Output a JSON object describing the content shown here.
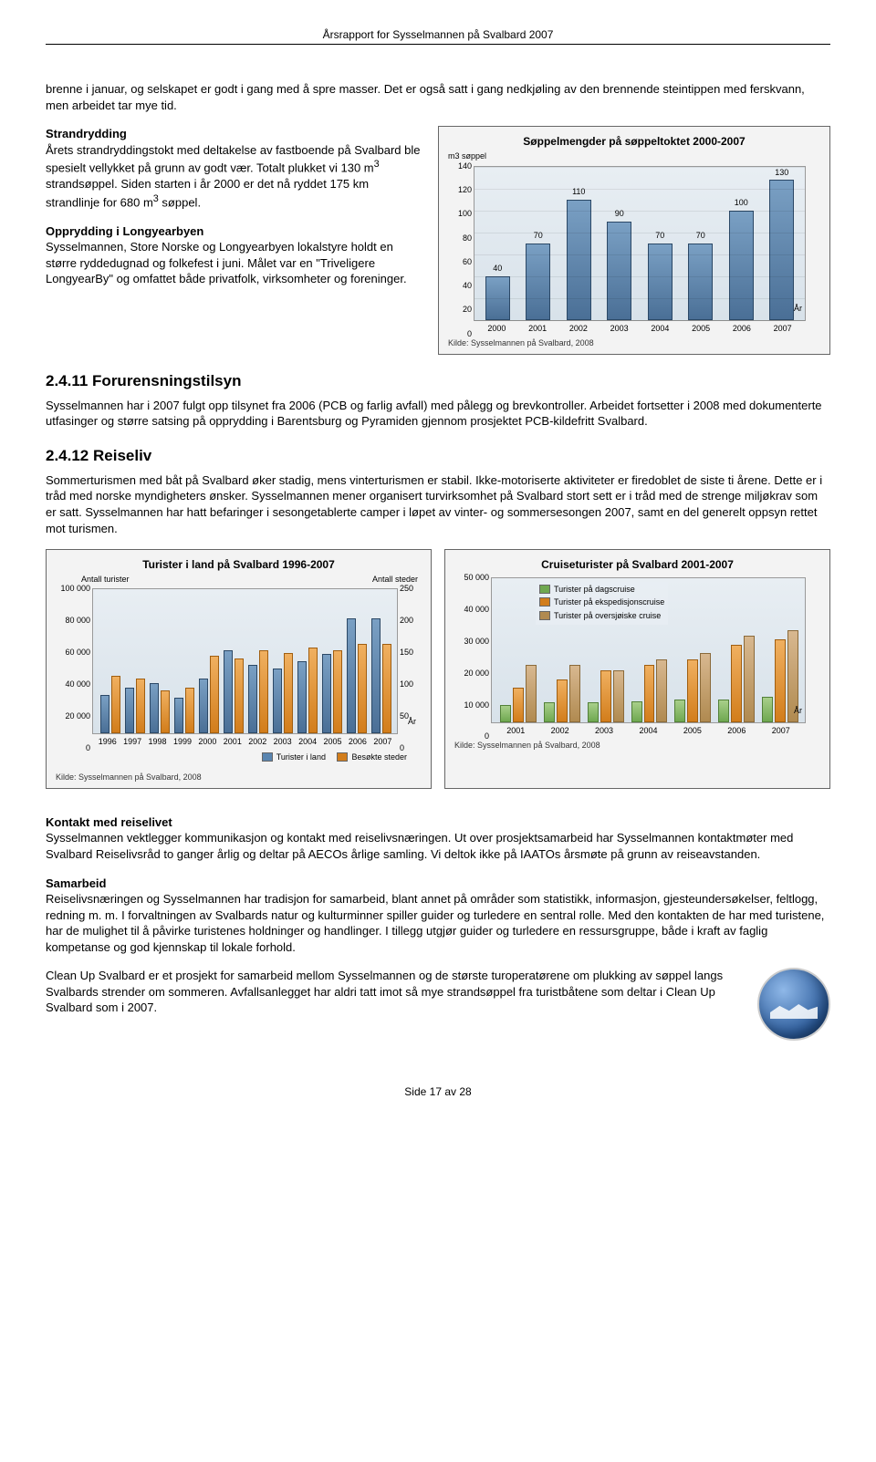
{
  "doc_header": "Årsrapport for Sysselmannen på Svalbard 2007",
  "intro_paragraph": "brenne i januar, og selskapet er godt i gang med å spre masser. Det er også satt i gang nedkjøling av den brennende steintippen med ferskvann, men arbeidet tar mye tid.",
  "strandrydding": {
    "heading": "Strandrydding",
    "body1": "Årets strandryddingstokt med deltakelse av fastboende på Svalbard ble spesielt vellykket på grunn av godt vær. Totalt plukket vi 130 m",
    "body1_sup": "3",
    "body1_cont": " strandsøppel. Siden starten i år 2000 er det nå ryddet 175 km strandlinje for 680 m",
    "body1_sup2": "3",
    "body1_cont2": " søppel."
  },
  "opprydding": {
    "heading": "Opprydding i Longyearbyen",
    "body": "Sysselmannen, Store Norske og Longyearbyen lokalstyre holdt en større ryddedugnad og folkefest i juni. Målet var en \"Triveligere LongyearBy\" og omfattet både privatfolk, virksomheter og foreninger."
  },
  "chart1": {
    "title": "Søppelmengder på søppeltoktet 2000-2007",
    "ylabel": "m3 søppel",
    "source": "Kilde: Sysselmannen på Svalbard, 2008",
    "xaxis_label": "År",
    "ymax": 140,
    "ystep": 20,
    "yticks": [
      "0",
      "20",
      "40",
      "60",
      "80",
      "100",
      "120",
      "140"
    ],
    "categories": [
      "2000",
      "2001",
      "2002",
      "2003",
      "2004",
      "2005",
      "2006",
      "2007"
    ],
    "values": [
      40,
      70,
      110,
      90,
      70,
      70,
      100,
      130
    ],
    "bar_color": "#5a85b0"
  },
  "sec_2411": {
    "heading": "2.4.11 Forurensningstilsyn",
    "body": "Sysselmannen har i 2007 fulgt opp tilsynet fra 2006 (PCB og farlig avfall) med pålegg og brevkontroller. Arbeidet fortsetter i 2008 med dokumenterte utfasinger og større satsing på opprydding i Barentsburg og Pyramiden gjennom prosjektet PCB-kildefritt Svalbard."
  },
  "sec_2412": {
    "heading": "2.4.12 Reiseliv",
    "body": "Sommerturismen med båt på Svalbard øker stadig, mens vinterturismen er stabil. Ikke-motoriserte aktiviteter er firedoblet de siste ti årene. Dette er i tråd med norske myndigheters ønsker. Sysselmannen mener organisert turvirksomhet på Svalbard stort sett er i tråd med de strenge miljøkrav som er satt. Sysselmannen har hatt befaringer i sesongetablerte camper i løpet av vinter- og sommersesongen 2007, samt en del generelt oppsyn rettet mot turismen."
  },
  "chart2": {
    "title": "Turister i land på Svalbard 1996-2007",
    "y1label": "Antall turister",
    "y2label": "Antall steder",
    "source": "Kilde: Sysselmannen på Svalbard, 2008",
    "xaxis_label": "År",
    "y1max": 100000,
    "y1step": 20000,
    "y1ticks": [
      "0",
      "20 000",
      "40 000",
      "60 000",
      "80 000",
      "100 000"
    ],
    "y2max": 250,
    "y2step": 50,
    "y2ticks": [
      "0",
      "50",
      "100",
      "150",
      "200",
      "250"
    ],
    "categories": [
      "1996",
      "1997",
      "1998",
      "1999",
      "2000",
      "2001",
      "2002",
      "2003",
      "2004",
      "2005",
      "2006",
      "2007"
    ],
    "turister": [
      27000,
      32000,
      35000,
      25000,
      38000,
      58000,
      48000,
      45000,
      50000,
      55000,
      80000,
      80000
    ],
    "steder": [
      100,
      95,
      75,
      80,
      135,
      130,
      145,
      140,
      150,
      145,
      155,
      155
    ],
    "legend": {
      "a": "Turister i land",
      "b": "Besøkte steder"
    }
  },
  "chart3": {
    "title": "Cruiseturister på Svalbard 2001-2007",
    "source": "Kilde: Sysselmannen på Svalbard, 2008",
    "xaxis_label": "År",
    "ymax": 50000,
    "ystep": 10000,
    "yticks": [
      "0",
      "10 000",
      "20 000",
      "30 000",
      "40 000",
      "50 000"
    ],
    "categories": [
      "2001",
      "2002",
      "2003",
      "2004",
      "2005",
      "2006",
      "2007"
    ],
    "dagscruise": [
      6000,
      7000,
      7000,
      7500,
      8000,
      8000,
      9000
    ],
    "ekspedisjon": [
      12000,
      15000,
      18000,
      20000,
      22000,
      27000,
      29000
    ],
    "oversjoiske": [
      20000,
      20000,
      18000,
      22000,
      24000,
      30000,
      32000
    ],
    "legend": {
      "a": "Turister på dagscruise",
      "b": "Turister på ekspedisjonscruise",
      "c": "Turister på oversjøiske cruise"
    }
  },
  "kontakt": {
    "heading": "Kontakt med reiselivet",
    "body": "Sysselmannen vektlegger kommunikasjon og kontakt med reiselivsnæringen. Ut over prosjektsamarbeid har Sysselmannen kontaktmøter med Svalbard Reiselivsråd to ganger årlig og deltar på AECOs årlige samling. Vi deltok ikke på IAATOs årsmøte på grunn av reiseavstanden."
  },
  "samarbeid": {
    "heading": "Samarbeid",
    "body": "Reiselivsnæringen og Sysselmannen har tradisjon for samarbeid, blant annet på områder som statistikk, informasjon, gjesteundersøkelser, feltlogg, redning m. m. I forvaltningen av Svalbards natur og kulturminner spiller guider og turledere en sentral rolle. Med den kontakten de har med turistene, har de mulighet til å påvirke turistenes holdninger og handlinger. I tillegg utgjør guider og turledere en ressursgruppe, både i kraft av faglig kompetanse og god kjennskap til lokale forhold."
  },
  "cleanup": {
    "body": "Clean Up Svalbard er et prosjekt for samarbeid mellom Sysselmannen og de største turoperatørene om plukking av søppel langs Svalbards strender om sommeren. Avfallsanlegget har aldri tatt imot så mye strandsøppel fra turistbåtene som deltar i Clean Up Svalbard som i 2007."
  },
  "footer": "Side 17 av 28",
  "colors": {
    "blue": "#5a85b0",
    "orange": "#d27d1b",
    "green": "#6fa850",
    "brown": "#b08a50",
    "plot_bg_top": "#e8eef3",
    "plot_bg_bot": "#d8e2ea",
    "box_bg": "#f3f3f3"
  }
}
